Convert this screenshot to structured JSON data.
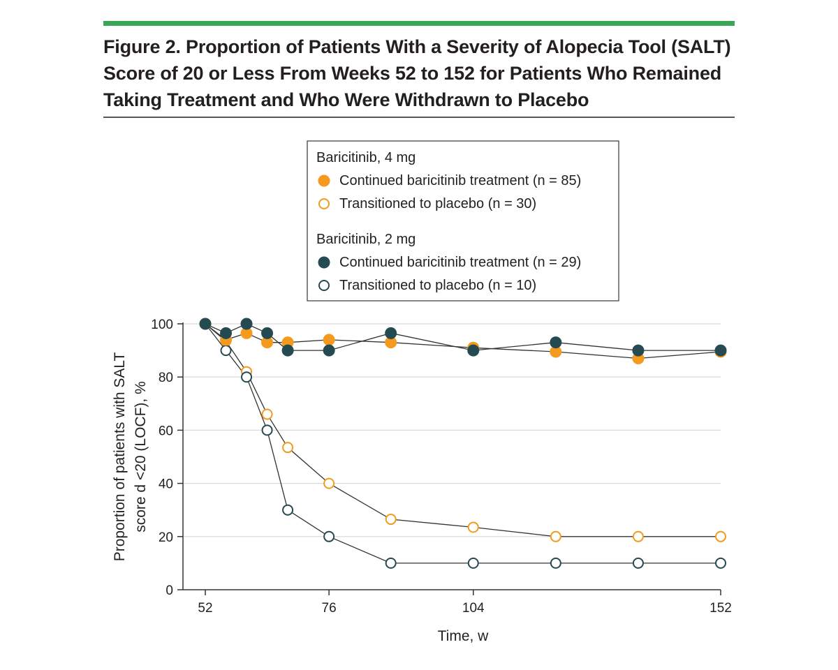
{
  "figure": {
    "title": "Figure 2. Proportion of Patients With a Severity of Alopecia Tool (SALT) Score of 20 or Less From Weeks 52 to 152 for Patients Who Remained Taking Treatment and Who Were Withdrawn to Placebo"
  },
  "chart_data": {
    "type": "line",
    "xlabel": "Time, w",
    "ylabel_lines": [
      "Proportion of patients with SALT",
      "score d <20 (LOCF), %"
    ],
    "xlim": [
      52,
      152
    ],
    "ylim": [
      0,
      100
    ],
    "xticks": [
      52,
      76,
      104,
      152
    ],
    "yticks": [
      0,
      20,
      40,
      60,
      80,
      100
    ],
    "grid": "horizontal",
    "colors": {
      "orange": "#f39a1f",
      "teal": "#254a52",
      "line": "#333333",
      "grid": "#d9d9d9"
    },
    "legend": {
      "position": "top-center",
      "groups": [
        {
          "title": "Baricitinib, 4 mg",
          "entries": [
            0,
            1
          ]
        },
        {
          "title": "Baricitinib, 2 mg",
          "entries": [
            2,
            3
          ]
        }
      ]
    },
    "series": [
      {
        "name": "Continued baricitinib treatment (n = 85)",
        "color": "orange",
        "filled": true,
        "x": [
          52,
          56,
          60,
          64,
          68,
          76,
          88,
          104,
          120,
          136,
          152
        ],
        "y": [
          100,
          94,
          96.5,
          93,
          93,
          94,
          93,
          91,
          89.5,
          87,
          89.5
        ]
      },
      {
        "name": "Transitioned to placebo (n = 30)",
        "color": "orange",
        "filled": false,
        "x": [
          52,
          56,
          60,
          64,
          68,
          76,
          88,
          104,
          120,
          136,
          152
        ],
        "y": [
          100,
          93.5,
          82,
          66,
          53.5,
          40,
          26.5,
          23.5,
          20,
          20,
          20
        ]
      },
      {
        "name": "Continued baricitinib treatment (n = 29)",
        "color": "teal",
        "filled": true,
        "x": [
          52,
          56,
          60,
          64,
          68,
          76,
          88,
          104,
          120,
          136,
          152
        ],
        "y": [
          100,
          96.5,
          100,
          96.5,
          90,
          90,
          96.5,
          90,
          93,
          90,
          90
        ]
      },
      {
        "name": "Transitioned to placebo (n = 10)",
        "color": "teal",
        "filled": false,
        "x": [
          52,
          56,
          60,
          64,
          68,
          76,
          88,
          104,
          120,
          136,
          152
        ],
        "y": [
          100,
          90,
          80,
          60,
          30,
          20,
          10,
          10,
          10,
          10,
          10
        ]
      }
    ]
  }
}
